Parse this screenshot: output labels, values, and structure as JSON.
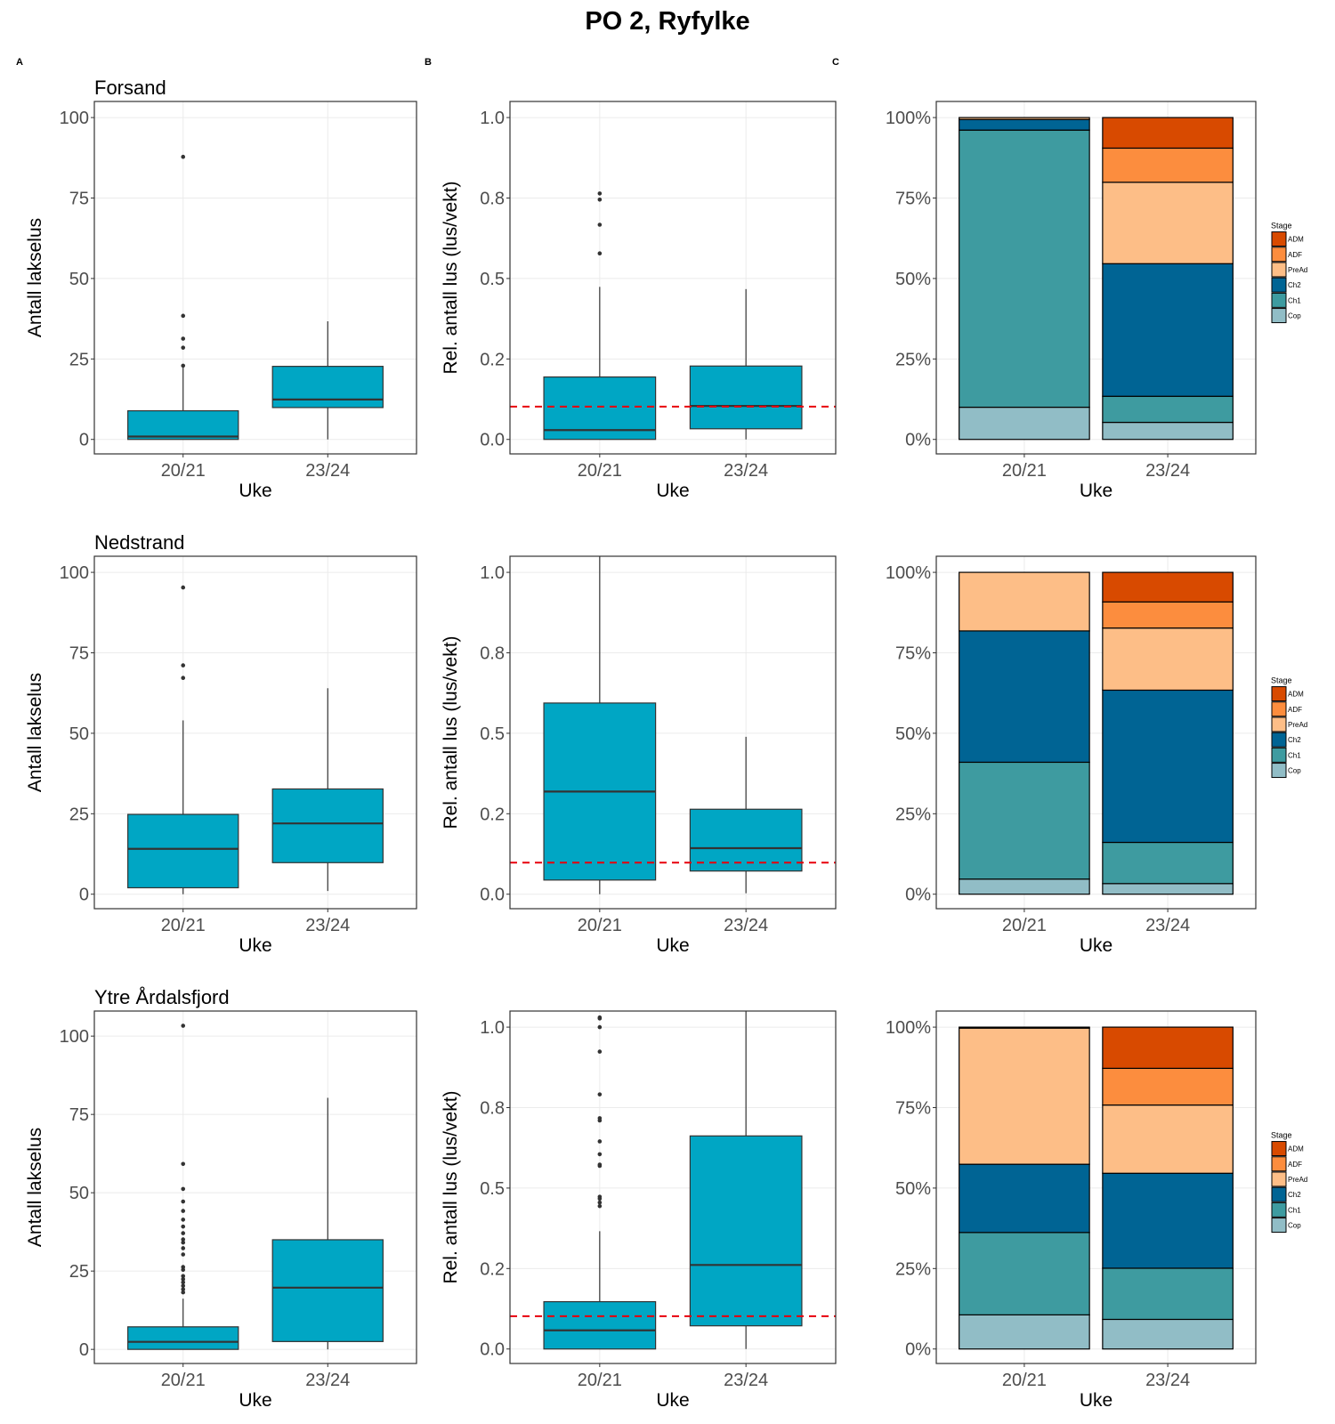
{
  "title": "PO 2, Ryfylke",
  "panel_tags": [
    "A",
    "B",
    "C"
  ],
  "colors": {
    "box_fill": "#00A6C4",
    "box_stroke": "#333333",
    "threshold_line": "#E8000B",
    "ADM": "#D84A00",
    "ADF": "#FC8D3E",
    "PreAd": "#FDBE87",
    "Ch2": "#006494",
    "Ch1": "#3E9BA0",
    "Cop": "#91BDC6",
    "grid": "#EBEBEB",
    "tick_text": "#4D4D4D"
  },
  "chart_data": [
    {
      "type": "box",
      "panel": "A",
      "row": 1,
      "title": "Forsand",
      "xlabel": "Uke",
      "ylabel": "Antall lakselus",
      "categories": [
        "20/21",
        "23/24"
      ],
      "yticks": [
        0,
        25,
        50,
        75,
        100
      ],
      "ytick_labels": [
        "0",
        "25",
        "50",
        "75",
        "100"
      ],
      "ylim": [
        -4.5,
        105
      ],
      "grid": true,
      "boxes": [
        {
          "category": "20/21",
          "whisker_low": 0,
          "q1": 0,
          "median": 0.9,
          "q3": 8.9,
          "whisker_high": 22.3,
          "outliers": [
            87.8,
            38.4,
            31.3,
            28.5,
            22.9
          ]
        },
        {
          "category": "23/24",
          "whisker_low": 0,
          "q1": 9.9,
          "median": 12.4,
          "q3": 22.7,
          "whisker_high": 36.7,
          "outliers": []
        }
      ]
    },
    {
      "type": "box",
      "panel": "B",
      "row": 1,
      "title": "",
      "xlabel": "Uke",
      "ylabel": "Rel. antall lus (lus/vekt)",
      "categories": [
        "20/21",
        "23/24"
      ],
      "yticks": [
        0,
        0.25,
        0.5,
        0.75,
        1.0
      ],
      "ytick_labels": [
        "0.0",
        "0.2",
        "0.5",
        "0.8",
        "1.0"
      ],
      "ylim": [
        -0.045,
        1.05
      ],
      "grid": true,
      "threshold": 0.102,
      "threshold_style": "dashed-red",
      "boxes": [
        {
          "category": "20/21",
          "whisker_low": 0,
          "q1": 0,
          "median": 0.029,
          "q3": 0.194,
          "whisker_high": 0.474,
          "outliers": [
            0.764,
            0.745,
            0.667,
            0.578
          ]
        },
        {
          "category": "23/24",
          "whisker_low": 0,
          "q1": 0.033,
          "median": 0.104,
          "q3": 0.228,
          "whisker_high": 0.467,
          "outliers": []
        }
      ]
    },
    {
      "type": "stacked-bar",
      "panel": "C",
      "row": 1,
      "title": "",
      "xlabel": "Uke",
      "ylabel": "",
      "categories": [
        "20/21",
        "23/24"
      ],
      "yticks": [
        0,
        25,
        50,
        75,
        100
      ],
      "ytick_labels": [
        "0%",
        "25%",
        "50%",
        "75%",
        "100%"
      ],
      "ylim": [
        -4.5,
        105
      ],
      "grid": true,
      "legend": {
        "title": "Stage",
        "position": "right",
        "entries": [
          "ADM",
          "ADF",
          "PreAd",
          "Ch2",
          "Ch1",
          "Cop"
        ]
      },
      "stack_order": [
        "Cop",
        "Ch1",
        "Ch2",
        "PreAd",
        "ADF",
        "ADM"
      ],
      "series": [
        {
          "name": "Cop",
          "values": [
            10.0,
            5.3
          ]
        },
        {
          "name": "Ch1",
          "values": [
            86.1,
            8.1
          ]
        },
        {
          "name": "Ch2",
          "values": [
            3.3,
            41.2
          ]
        },
        {
          "name": "PreAd",
          "values": [
            0.6,
            25.3
          ]
        },
        {
          "name": "ADF",
          "values": [
            0,
            10.6
          ]
        },
        {
          "name": "ADM",
          "values": [
            0,
            9.5
          ]
        }
      ]
    },
    {
      "type": "box",
      "panel": "A",
      "row": 2,
      "title": "Nedstrand",
      "xlabel": "Uke",
      "ylabel": "Antall lakselus",
      "categories": [
        "20/21",
        "23/24"
      ],
      "yticks": [
        0,
        25,
        50,
        75,
        100
      ],
      "ytick_labels": [
        "0",
        "25",
        "50",
        "75",
        "100"
      ],
      "ylim": [
        -4.5,
        105
      ],
      "grid": true,
      "boxes": [
        {
          "category": "20/21",
          "whisker_low": 0,
          "q1": 2,
          "median": 14.1,
          "q3": 24.8,
          "whisker_high": 54,
          "outliers": [
            95.3,
            71.1,
            67.2
          ]
        },
        {
          "category": "23/24",
          "whisker_low": 1,
          "q1": 9.8,
          "median": 22,
          "q3": 32.7,
          "whisker_high": 64,
          "outliers": []
        }
      ]
    },
    {
      "type": "box",
      "panel": "B",
      "row": 2,
      "title": "",
      "xlabel": "Uke",
      "ylabel": "Rel. antall lus (lus/vekt)",
      "categories": [
        "20/21",
        "23/24"
      ],
      "yticks": [
        0,
        0.25,
        0.5,
        0.75,
        1.0
      ],
      "ytick_labels": [
        "0.0",
        "0.2",
        "0.5",
        "0.8",
        "1.0"
      ],
      "ylim": [
        -0.045,
        1.05
      ],
      "grid": true,
      "threshold": 0.098,
      "threshold_style": "dashed-red",
      "boxes": [
        {
          "category": "20/21",
          "whisker_low": 0,
          "q1": 0.044,
          "median": 0.319,
          "q3": 0.594,
          "whisker_high": 1.2,
          "outliers": []
        },
        {
          "category": "23/24",
          "whisker_low": 0.003,
          "q1": 0.072,
          "median": 0.143,
          "q3": 0.264,
          "whisker_high": 0.489,
          "outliers": []
        }
      ]
    },
    {
      "type": "stacked-bar",
      "panel": "C",
      "row": 2,
      "title": "",
      "xlabel": "Uke",
      "ylabel": "",
      "categories": [
        "20/21",
        "23/24"
      ],
      "yticks": [
        0,
        25,
        50,
        75,
        100
      ],
      "ytick_labels": [
        "0%",
        "25%",
        "50%",
        "75%",
        "100%"
      ],
      "ylim": [
        -4.5,
        105
      ],
      "grid": true,
      "legend": {
        "title": "Stage",
        "position": "right",
        "entries": [
          "ADM",
          "ADF",
          "PreAd",
          "Ch2",
          "Ch1",
          "Cop"
        ]
      },
      "stack_order": [
        "Cop",
        "Ch1",
        "Ch2",
        "PreAd",
        "ADF",
        "ADM"
      ],
      "series": [
        {
          "name": "Cop",
          "values": [
            4.7,
            3.3
          ]
        },
        {
          "name": "Ch1",
          "values": [
            36.3,
            12.8
          ]
        },
        {
          "name": "Ch2",
          "values": [
            40.8,
            47.3
          ]
        },
        {
          "name": "PreAd",
          "values": [
            18.2,
            19.3
          ]
        },
        {
          "name": "ADF",
          "values": [
            0,
            8.1
          ]
        },
        {
          "name": "ADM",
          "values": [
            0,
            9.2
          ]
        }
      ]
    },
    {
      "type": "box",
      "panel": "A",
      "row": 3,
      "title": "Ytre Årdalsfjord",
      "xlabel": "Uke",
      "ylabel": "Antall lakselus",
      "categories": [
        "20/21",
        "23/24"
      ],
      "yticks": [
        0,
        25,
        50,
        75,
        100
      ],
      "ytick_labels": [
        "0",
        "25",
        "50",
        "75",
        "100"
      ],
      "ylim": [
        -4.5,
        108
      ],
      "grid": true,
      "boxes": [
        {
          "category": "20/21",
          "whisker_low": 0,
          "q1": 0,
          "median": 2.4,
          "q3": 7.2,
          "whisker_high": 16.2,
          "outliers": [
            103.3,
            59.2,
            51.2,
            47.2,
            44.2,
            41.4,
            39.2,
            37.1,
            35.1,
            34.1,
            32.3,
            30.3,
            26.3,
            25.4,
            23.4,
            22.4,
            21.4,
            20.3,
            19.2,
            18.2
          ]
        },
        {
          "category": "23/24",
          "whisker_low": 0,
          "q1": 2.5,
          "median": 19.7,
          "q3": 35,
          "whisker_high": 80.3,
          "outliers": []
        }
      ]
    },
    {
      "type": "box",
      "panel": "B",
      "row": 3,
      "title": "",
      "xlabel": "Uke",
      "ylabel": "Rel. antall lus (lus/vekt)",
      "categories": [
        "20/21",
        "23/24"
      ],
      "yticks": [
        0,
        0.25,
        0.5,
        0.75,
        1.0
      ],
      "ytick_labels": [
        "0.0",
        "0.2",
        "0.5",
        "0.8",
        "1.0"
      ],
      "ylim": [
        -0.045,
        1.05
      ],
      "grid": true,
      "threshold": 0.102,
      "threshold_style": "dashed-red",
      "boxes": [
        {
          "category": "20/21",
          "whisker_low": 0,
          "q1": 0,
          "median": 0.058,
          "q3": 0.147,
          "whisker_high": 0.366,
          "outliers": [
            1.03,
            1.027,
            1.0,
            0.924,
            0.791,
            0.717,
            0.71,
            0.645,
            0.605,
            0.573,
            0.569,
            0.473,
            0.467,
            0.455,
            0.444
          ]
        },
        {
          "category": "23/24",
          "whisker_low": 0,
          "q1": 0.072,
          "median": 0.261,
          "q3": 0.662,
          "whisker_high": 1.2,
          "outliers": []
        }
      ]
    },
    {
      "type": "stacked-bar",
      "panel": "C",
      "row": 3,
      "title": "",
      "xlabel": "Uke",
      "ylabel": "",
      "categories": [
        "20/21",
        "23/24"
      ],
      "yticks": [
        0,
        25,
        50,
        75,
        100
      ],
      "ytick_labels": [
        "0%",
        "25%",
        "50%",
        "75%",
        "100%"
      ],
      "ylim": [
        -4.5,
        105
      ],
      "grid": true,
      "legend": {
        "title": "Stage",
        "position": "right",
        "entries": [
          "ADM",
          "ADF",
          "PreAd",
          "Ch2",
          "Ch1",
          "Cop"
        ]
      },
      "stack_order": [
        "Cop",
        "Ch1",
        "Ch2",
        "PreAd",
        "ADF",
        "ADM"
      ],
      "series": [
        {
          "name": "Cop",
          "values": [
            10.6,
            9.2
          ]
        },
        {
          "name": "Ch1",
          "values": [
            25.6,
            15.9
          ]
        },
        {
          "name": "Ch2",
          "values": [
            21.2,
            29.5
          ]
        },
        {
          "name": "PreAd",
          "values": [
            42.3,
            21.2
          ]
        },
        {
          "name": "ADF",
          "values": [
            0,
            11.4
          ]
        },
        {
          "name": "ADM",
          "values": [
            0.3,
            12.8
          ]
        }
      ]
    }
  ]
}
